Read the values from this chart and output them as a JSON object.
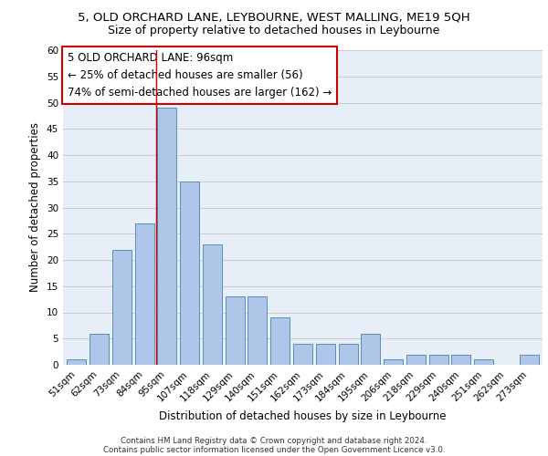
{
  "title1": "5, OLD ORCHARD LANE, LEYBOURNE, WEST MALLING, ME19 5QH",
  "title2": "Size of property relative to detached houses in Leybourne",
  "xlabel": "Distribution of detached houses by size in Leybourne",
  "ylabel": "Number of detached properties",
  "categories": [
    "51sqm",
    "62sqm",
    "73sqm",
    "84sqm",
    "95sqm",
    "107sqm",
    "118sqm",
    "129sqm",
    "140sqm",
    "151sqm",
    "162sqm",
    "173sqm",
    "184sqm",
    "195sqm",
    "206sqm",
    "218sqm",
    "229sqm",
    "240sqm",
    "251sqm",
    "262sqm",
    "273sqm"
  ],
  "values": [
    1,
    6,
    22,
    27,
    49,
    35,
    23,
    13,
    13,
    9,
    4,
    4,
    4,
    6,
    1,
    2,
    2,
    2,
    1,
    0,
    2
  ],
  "bar_color": "#aec6e8",
  "bar_edge_color": "#5b8db8",
  "annotation_box_text": "5 OLD ORCHARD LANE: 96sqm\n← 25% of detached houses are smaller (56)\n74% of semi-detached houses are larger (162) →",
  "annotation_box_color": "white",
  "annotation_box_edge_color": "#cc0000",
  "ylim": [
    0,
    60
  ],
  "yticks": [
    0,
    5,
    10,
    15,
    20,
    25,
    30,
    35,
    40,
    45,
    50,
    55,
    60
  ],
  "grid_color": "#cccccc",
  "background_color": "#e8eef8",
  "bar_width": 0.85,
  "footer1": "Contains HM Land Registry data © Crown copyright and database right 2024.",
  "footer2": "Contains public sector information licensed under the Open Government Licence v3.0.",
  "highlight_bar_index": 4,
  "title1_fontsize": 9.5,
  "title2_fontsize": 9,
  "axis_label_fontsize": 8.5,
  "tick_fontsize": 7.5,
  "annotation_fontsize": 8.5,
  "footer_fontsize": 6.2
}
